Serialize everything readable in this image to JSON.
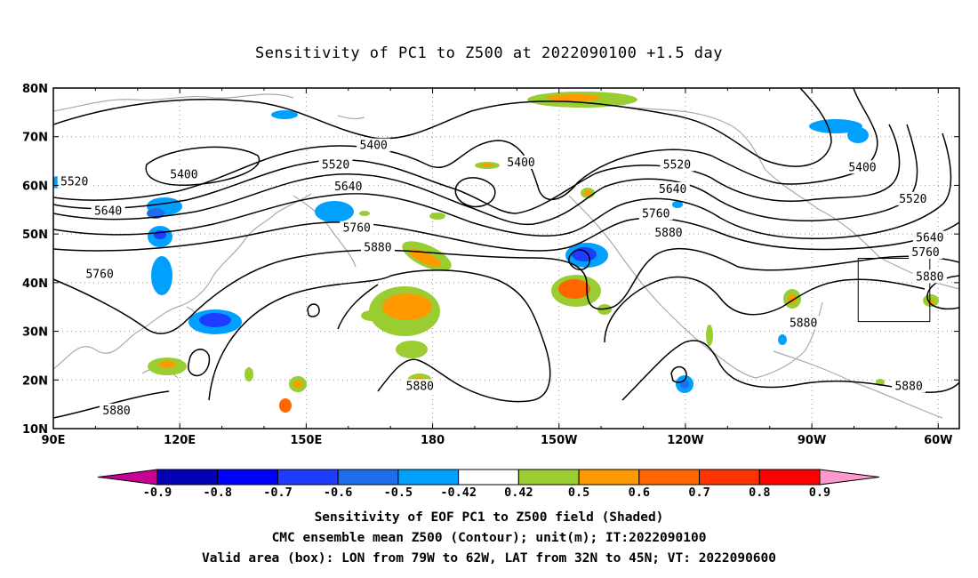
{
  "title": "Sensitivity of PC1 to Z500 at 2022090100 +1.5 day",
  "map": {
    "lat_labels": [
      "80N",
      "70N",
      "60N",
      "50N",
      "40N",
      "30N",
      "20N",
      "10N"
    ],
    "lon_labels": [
      "90E",
      "120E",
      "150E",
      "180",
      "150W",
      "120W",
      "90W",
      "60W"
    ],
    "lon_range": [
      90,
      305
    ],
    "lat_range": [
      10,
      80
    ],
    "coastline_color": "#aaaaaa",
    "grid": "dotted",
    "contour_color": "#000000",
    "contour_labels": [
      {
        "text": "5400",
        "lon": 166,
        "lat": 68
      },
      {
        "text": "5400",
        "lon": 121,
        "lat": 62
      },
      {
        "text": "5400",
        "lon": 201,
        "lat": 64.5
      },
      {
        "text": "5400",
        "lon": 282,
        "lat": 63.5
      },
      {
        "text": "5520",
        "lon": 95,
        "lat": 60.5
      },
      {
        "text": "5520",
        "lon": 157,
        "lat": 64
      },
      {
        "text": "5520",
        "lon": 238,
        "lat": 64
      },
      {
        "text": "5520",
        "lon": 294,
        "lat": 57
      },
      {
        "text": "5640",
        "lon": 103,
        "lat": 54.5
      },
      {
        "text": "5640",
        "lon": 160,
        "lat": 59.5
      },
      {
        "text": "5640",
        "lon": 237,
        "lat": 59
      },
      {
        "text": "5640",
        "lon": 298,
        "lat": 49
      },
      {
        "text": "5760",
        "lon": 101,
        "lat": 41.5
      },
      {
        "text": "5760",
        "lon": 162,
        "lat": 51
      },
      {
        "text": "5760",
        "lon": 233,
        "lat": 54
      },
      {
        "text": "5760",
        "lon": 297,
        "lat": 46
      },
      {
        "text": "5880",
        "lon": 105,
        "lat": 13.5
      },
      {
        "text": "5880",
        "lon": 167,
        "lat": 47
      },
      {
        "text": "5880",
        "lon": 177,
        "lat": 18.5
      },
      {
        "text": "5880",
        "lon": 236,
        "lat": 50
      },
      {
        "text": "5880",
        "lon": 268,
        "lat": 31.5
      },
      {
        "text": "5880",
        "lon": 298,
        "lat": 41
      },
      {
        "text": "5880",
        "lon": 293,
        "lat": 18.5
      }
    ],
    "valid_box": {
      "lon_min": -79,
      "lon_max": -62,
      "lat_min": 32,
      "lat_max": 45
    }
  },
  "colorbar": {
    "labels": [
      "-0.9",
      "-0.8",
      "-0.7",
      "-0.6",
      "-0.5",
      "-0.42",
      "0.42",
      "0.5",
      "0.6",
      "0.7",
      "0.8",
      "0.9"
    ],
    "colors": [
      "#0000b4",
      "#0000ff",
      "#1e3cff",
      "#1e6eeb",
      "#00a0ff",
      "#ffffff",
      "#9acd32",
      "#ff9900",
      "#ff6600",
      "#ff3300",
      "#ff0000"
    ],
    "low_extend_color": "#c80096",
    "high_extend_color": "#ff99cc"
  },
  "captions": {
    "line1": "Sensitivity of EOF PC1 to Z500 field (Shaded)",
    "line2": "CMC ensemble mean Z500 (Contour); unit(m); IT:2022090100",
    "line3": "Valid area (box): LON from 79W to 62W, LAT from 32N to 45N; VT: 2022090600"
  }
}
